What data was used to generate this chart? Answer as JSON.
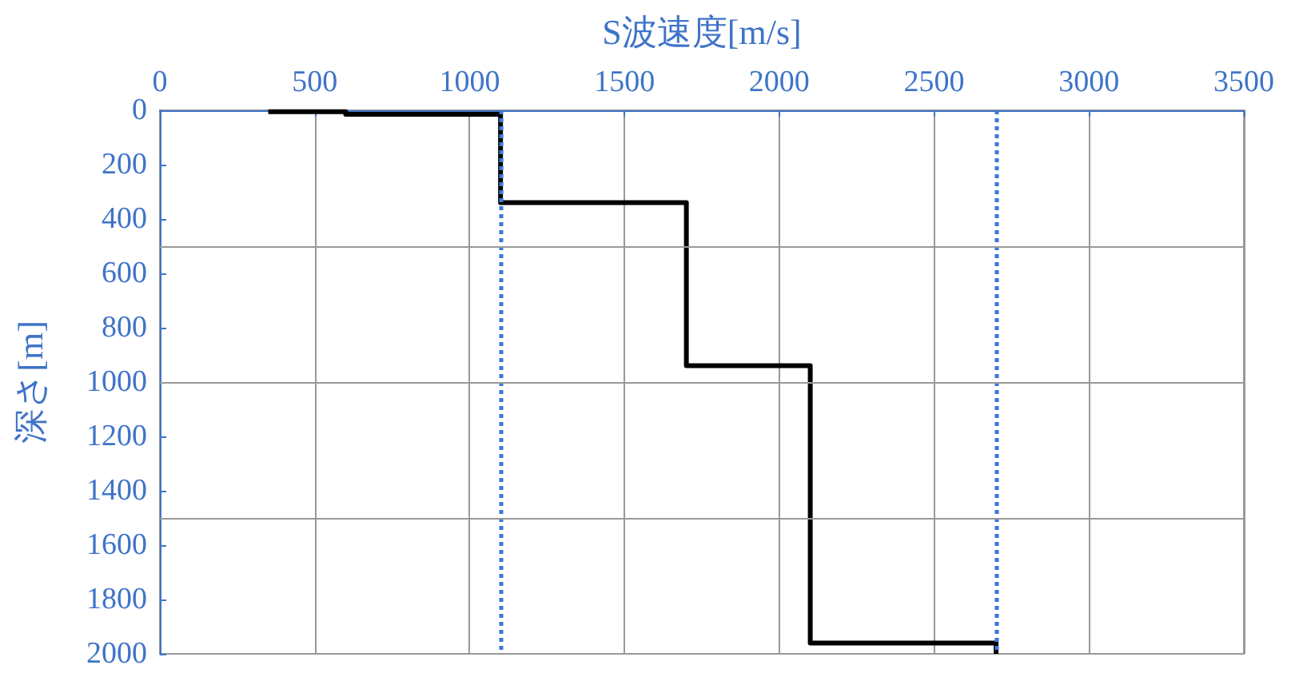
{
  "chart_data": {
    "type": "line",
    "xlabel": "S波速度[m/s]",
    "ylabel": "深さ[m]",
    "x": [
      350,
      600,
      600,
      1100,
      1100,
      1700,
      1700,
      2100,
      2100,
      2700,
      2700
    ],
    "series": [
      {
        "color": "#000000",
        "values": [
          5,
          5,
          15,
          15,
          340,
          340,
          940,
          940,
          1960,
          1960,
          2000
        ]
      }
    ],
    "xlim": [
      0,
      3500
    ],
    "xticks": [
      0,
      500,
      1000,
      1500,
      2000,
      2500,
      3000,
      3500
    ],
    "ylim": [
      2000,
      0
    ],
    "yticks": [
      0,
      200,
      400,
      600,
      800,
      1000,
      1200,
      1400,
      1600,
      1800,
      2000,
      {
        "value": 500,
        "label": null
      },
      {
        "value": 1000,
        "label": null
      },
      {
        "value": 1500,
        "label": null
      }
    ],
    "ref_lines": [
      {
        "axis": "x",
        "value": 1100,
        "label": null,
        "color": "#3a78d8",
        "line_style": "dotted"
      },
      {
        "axis": "x",
        "value": 2700,
        "label": null,
        "color": "#3a78d8",
        "line_style": "dotted"
      }
    ],
    "grid": true,
    "marker": "none",
    "line_style": "solid"
  }
}
